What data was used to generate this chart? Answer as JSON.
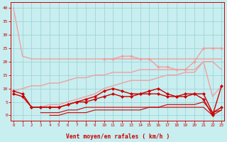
{
  "x": [
    0,
    1,
    2,
    3,
    4,
    5,
    6,
    7,
    8,
    9,
    10,
    11,
    12,
    13,
    14,
    15,
    16,
    17,
    18,
    19,
    20,
    21,
    22,
    23
  ],
  "series": [
    {
      "name": "top_pink",
      "y": [
        40,
        22,
        21,
        21,
        21,
        21,
        21,
        21,
        21,
        21,
        21,
        21,
        21,
        21,
        21,
        21,
        21,
        21,
        21,
        21,
        21,
        21,
        21,
        21
      ],
      "color": "#f0a0a0",
      "linewidth": 1.0,
      "marker": null,
      "markersize": 0,
      "zorder": 2,
      "skip_none": false
    },
    {
      "name": "upper_pink_rising",
      "y": [
        null,
        null,
        null,
        null,
        null,
        null,
        null,
        null,
        null,
        null,
        21,
        21,
        22,
        22,
        21,
        21,
        18,
        18,
        17,
        17,
        20,
        25,
        25,
        25
      ],
      "color": "#f0a0a0",
      "linewidth": 1.0,
      "marker": "D",
      "markersize": 2.0,
      "zorder": 3,
      "skip_none": true
    },
    {
      "name": "medium_pink_rising",
      "y": [
        9,
        10,
        11,
        11,
        12,
        12,
        13,
        14,
        14,
        15,
        15,
        16,
        16,
        16,
        17,
        17,
        17,
        17,
        17,
        17,
        17,
        20,
        20,
        17
      ],
      "color": "#f0a0a0",
      "linewidth": 1.0,
      "marker": null,
      "markersize": 0,
      "zorder": 2,
      "skip_none": false
    },
    {
      "name": "lower_pink_rising",
      "y": [
        null,
        null,
        null,
        3,
        4,
        4,
        5,
        6,
        7,
        8,
        10,
        11,
        12,
        13,
        13,
        13,
        14,
        15,
        15,
        16,
        16,
        20,
        7,
        11
      ],
      "color": "#f0a0a0",
      "linewidth": 1.0,
      "marker": null,
      "markersize": 0,
      "zorder": 2,
      "skip_none": true
    },
    {
      "name": "dark_red_top",
      "y": [
        9,
        8,
        3,
        3,
        3,
        3,
        4,
        5,
        6,
        7,
        9,
        10,
        9,
        8,
        8,
        9,
        10,
        8,
        7,
        8,
        8,
        6,
        0,
        11
      ],
      "color": "#cc0000",
      "linewidth": 1.0,
      "marker": "D",
      "markersize": 2.0,
      "zorder": 4,
      "skip_none": false
    },
    {
      "name": "dark_red_mid",
      "y": [
        8,
        7,
        3,
        3,
        3,
        3,
        4,
        5,
        5,
        6,
        7,
        8,
        7,
        7,
        8,
        8,
        8,
        7,
        7,
        7,
        8,
        8,
        1,
        3
      ],
      "color": "#cc0000",
      "linewidth": 1.0,
      "marker": "D",
      "markersize": 2.0,
      "zorder": 4,
      "skip_none": false
    },
    {
      "name": "dark_red_flat1",
      "y": [
        null,
        null,
        null,
        null,
        null,
        null,
        null,
        null,
        null,
        null,
        null,
        null,
        null,
        null,
        null,
        null,
        null,
        null,
        null,
        null,
        null,
        null,
        null,
        null
      ],
      "color": "#cc0000",
      "linewidth": 0.8,
      "marker": null,
      "markersize": 0,
      "zorder": 3,
      "skip_none": true
    },
    {
      "name": "dark_red_bottom1",
      "y": [
        null,
        null,
        null,
        1,
        1,
        1,
        2,
        2,
        3,
        3,
        3,
        3,
        3,
        3,
        3,
        3,
        3,
        4,
        4,
        4,
        4,
        5,
        1,
        2
      ],
      "color": "#cc0000",
      "linewidth": 0.8,
      "marker": null,
      "markersize": 0,
      "zorder": 3,
      "skip_none": true
    },
    {
      "name": "dark_red_bottom2",
      "y": [
        null,
        null,
        null,
        null,
        0,
        0,
        1,
        1,
        1,
        2,
        2,
        2,
        2,
        2,
        2,
        3,
        3,
        3,
        3,
        3,
        3,
        3,
        0,
        2
      ],
      "color": "#cc0000",
      "linewidth": 0.8,
      "marker": null,
      "markersize": 0,
      "zorder": 3,
      "skip_none": true
    }
  ],
  "background_color": "#c8eef0",
  "grid_color": "#a0d4d8",
  "axis_color": "#cc0000",
  "tick_color": "#cc0000",
  "xlabel": "Vent moyen/en rafales ( km/h )",
  "ylim": [
    -2,
    42
  ],
  "xlim": [
    -0.3,
    23.3
  ],
  "yticks": [
    0,
    5,
    10,
    15,
    20,
    25,
    30,
    35,
    40
  ],
  "xticks": [
    0,
    1,
    2,
    3,
    4,
    5,
    6,
    7,
    8,
    9,
    10,
    11,
    12,
    13,
    14,
    15,
    16,
    17,
    18,
    19,
    20,
    21,
    22,
    23
  ]
}
